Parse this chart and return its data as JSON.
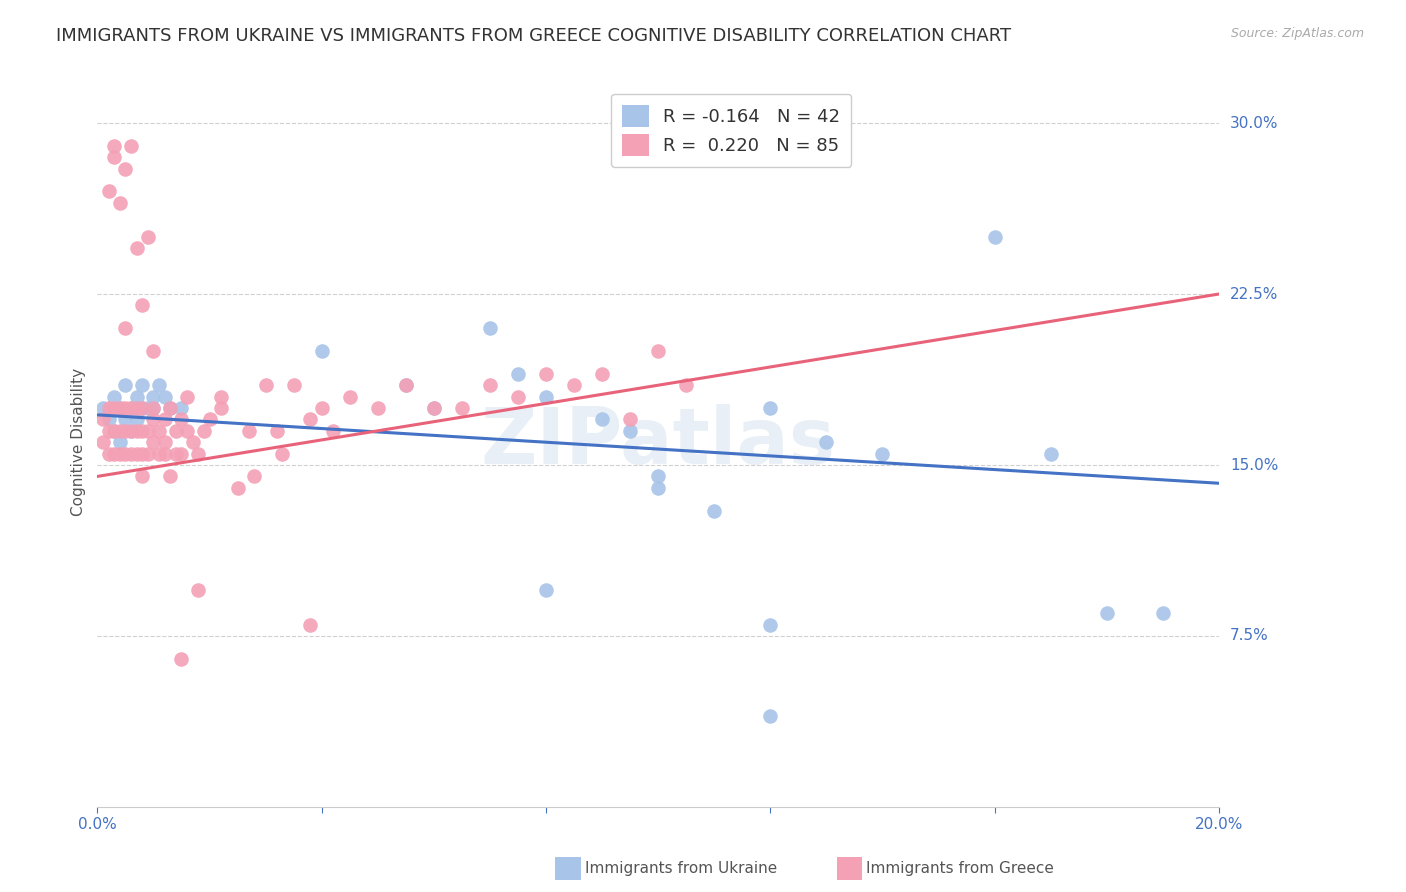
{
  "title": "IMMIGRANTS FROM UKRAINE VS IMMIGRANTS FROM GREECE COGNITIVE DISABILITY CORRELATION CHART",
  "source": "Source: ZipAtlas.com",
  "ylabel": "Cognitive Disability",
  "xlim": [
    0.0,
    0.2
  ],
  "ylim": [
    0.0,
    0.32
  ],
  "xticks": [
    0.0,
    0.04,
    0.08,
    0.12,
    0.16,
    0.2
  ],
  "xtick_labels": [
    "0.0%",
    "",
    "",
    "",
    "",
    "20.0%"
  ],
  "ytick_labels_right": [
    "7.5%",
    "15.0%",
    "22.5%",
    "30.0%"
  ],
  "ytick_vals_right": [
    0.075,
    0.15,
    0.225,
    0.3
  ],
  "ukraine_R": -0.164,
  "ukraine_N": 42,
  "greece_R": 0.22,
  "greece_N": 85,
  "ukraine_color": "#a8c4e8",
  "greece_color": "#f4a0b5",
  "ukraine_line_color": "#4472c4",
  "greece_line_color": "#e8637a",
  "tick_color": "#4472c4",
  "background_color": "#ffffff",
  "grid_color": "#d0d0d0",
  "title_fontsize": 13,
  "axis_label_fontsize": 11,
  "tick_fontsize": 11,
  "watermark_text": "ZIPatlas",
  "ukraine_x": [
    0.001,
    0.002,
    0.003,
    0.003,
    0.004,
    0.004,
    0.005,
    0.005,
    0.006,
    0.006,
    0.007,
    0.007,
    0.008,
    0.008,
    0.009,
    0.01,
    0.01,
    0.011,
    0.012,
    0.013,
    0.015,
    0.04,
    0.055,
    0.06,
    0.07,
    0.075,
    0.08,
    0.09,
    0.095,
    0.1,
    0.11,
    0.12,
    0.13,
    0.1,
    0.08,
    0.12,
    0.14,
    0.16,
    0.17,
    0.18,
    0.19,
    0.12
  ],
  "ukraine_y": [
    0.175,
    0.17,
    0.165,
    0.18,
    0.16,
    0.175,
    0.17,
    0.185,
    0.175,
    0.165,
    0.18,
    0.17,
    0.175,
    0.185,
    0.175,
    0.18,
    0.175,
    0.185,
    0.18,
    0.175,
    0.175,
    0.2,
    0.185,
    0.175,
    0.21,
    0.19,
    0.18,
    0.17,
    0.165,
    0.14,
    0.13,
    0.175,
    0.16,
    0.145,
    0.095,
    0.08,
    0.155,
    0.25,
    0.155,
    0.085,
    0.085,
    0.04
  ],
  "greece_x": [
    0.001,
    0.001,
    0.002,
    0.002,
    0.002,
    0.003,
    0.003,
    0.003,
    0.004,
    0.004,
    0.004,
    0.005,
    0.005,
    0.005,
    0.006,
    0.006,
    0.006,
    0.007,
    0.007,
    0.007,
    0.008,
    0.008,
    0.008,
    0.009,
    0.009,
    0.01,
    0.01,
    0.01,
    0.011,
    0.011,
    0.012,
    0.012,
    0.013,
    0.013,
    0.014,
    0.014,
    0.015,
    0.015,
    0.016,
    0.016,
    0.017,
    0.018,
    0.019,
    0.02,
    0.022,
    0.025,
    0.027,
    0.03,
    0.032,
    0.035,
    0.038,
    0.04,
    0.042,
    0.045,
    0.05,
    0.055,
    0.06,
    0.065,
    0.07,
    0.075,
    0.08,
    0.085,
    0.09,
    0.095,
    0.1,
    0.105,
    0.022,
    0.028,
    0.033,
    0.038,
    0.018,
    0.008,
    0.005,
    0.003,
    0.002,
    0.003,
    0.004,
    0.005,
    0.006,
    0.007,
    0.008,
    0.009,
    0.01,
    0.012,
    0.015
  ],
  "greece_y": [
    0.17,
    0.16,
    0.165,
    0.155,
    0.175,
    0.165,
    0.155,
    0.175,
    0.165,
    0.155,
    0.175,
    0.165,
    0.155,
    0.175,
    0.165,
    0.155,
    0.175,
    0.165,
    0.155,
    0.175,
    0.165,
    0.155,
    0.175,
    0.165,
    0.155,
    0.17,
    0.16,
    0.175,
    0.165,
    0.155,
    0.17,
    0.16,
    0.175,
    0.145,
    0.165,
    0.155,
    0.17,
    0.155,
    0.18,
    0.165,
    0.16,
    0.155,
    0.165,
    0.17,
    0.175,
    0.14,
    0.165,
    0.185,
    0.165,
    0.185,
    0.17,
    0.175,
    0.165,
    0.18,
    0.175,
    0.185,
    0.175,
    0.175,
    0.185,
    0.18,
    0.19,
    0.185,
    0.19,
    0.17,
    0.2,
    0.185,
    0.18,
    0.145,
    0.155,
    0.08,
    0.095,
    0.145,
    0.21,
    0.29,
    0.27,
    0.285,
    0.265,
    0.28,
    0.29,
    0.245,
    0.22,
    0.25,
    0.2,
    0.155,
    0.065
  ]
}
